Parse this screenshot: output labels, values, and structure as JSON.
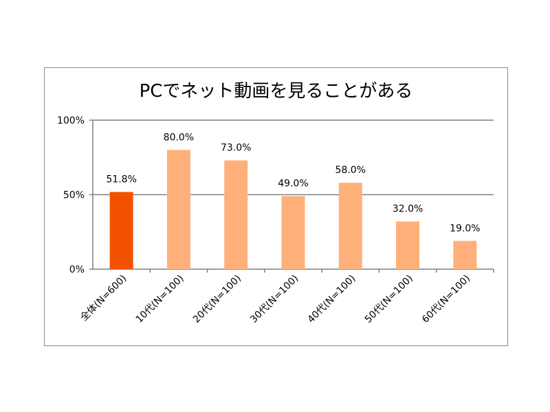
{
  "chart_data": {
    "type": "bar",
    "title": "PCでネット動画を見ることがある",
    "categories": [
      "全体(N=600)",
      "10代(N=100)",
      "20代(N=100)",
      "30代(N=100)",
      "40代(N=100)",
      "50代(N=100)",
      "60代(N=100)"
    ],
    "values": [
      51.8,
      80.0,
      73.0,
      49.0,
      58.0,
      32.0,
      19.0
    ],
    "data_labels": [
      "51.8%",
      "80.0%",
      "73.0%",
      "49.0%",
      "58.0%",
      "32.0%",
      "19.0%"
    ],
    "ylim": [
      0,
      100
    ],
    "yticks": [
      0,
      50,
      100
    ],
    "ytick_labels": [
      "0%",
      "50%",
      "100%"
    ],
    "grid": true,
    "xlabel": "",
    "ylabel": "",
    "colors": {
      "highlight": "#F25100",
      "default": "#FFB07A",
      "grid": "#7f7f7f"
    }
  }
}
